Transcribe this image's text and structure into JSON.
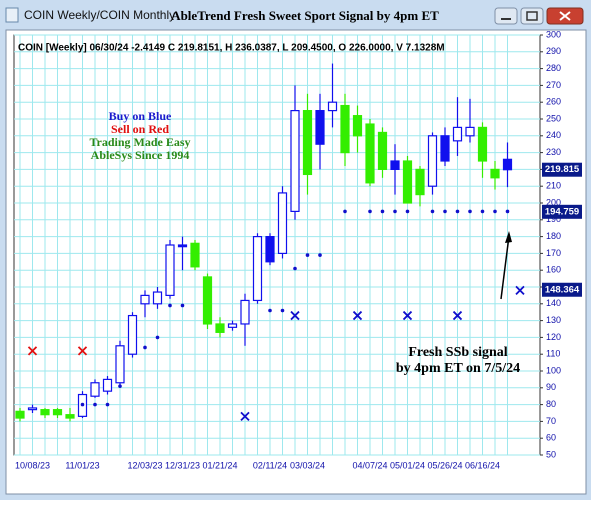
{
  "window_title": "COIN Weekly/COIN Monthly",
  "chart_data": {
    "type": "candlestick",
    "title": "AbleTrend Fresh Sweet Sport Signal by 4pm ET",
    "subtitle": "COIN [Weekly] 06/30/24 -2.4149 C 219.8151, H 236.0387, L 209.4500, O 226.0000, V 7.1328M",
    "annotations": [
      "Buy on Blue",
      "Sell on Red",
      "Trading Made Easy",
      "AbleSys Since 1994",
      "Fresh SSb signal",
      "by 4pm ET on 7/5/24"
    ],
    "annotation_colors": [
      "#1a1acc",
      "#e01010",
      "#2a8a1a",
      "#2a8a1a",
      "#000000",
      "#000000"
    ],
    "categories": [
      null,
      "10/08/23",
      null,
      null,
      null,
      "11/01/23",
      null,
      null,
      null,
      null,
      "12/03/23",
      null,
      null,
      "12/31/23",
      null,
      null,
      "01/21/24",
      null,
      null,
      null,
      "02/11/24",
      null,
      null,
      "03/03/24",
      null,
      null,
      null,
      null,
      "04/07/24",
      null,
      null,
      "05/01/24",
      null,
      null,
      "05/26/24",
      null,
      null,
      "06/16/24",
      null,
      null
    ],
    "candles": {
      "open": [
        72,
        77,
        74,
        74,
        72,
        73,
        85,
        88,
        93,
        110,
        140,
        140,
        145,
        175,
        176,
        156,
        128,
        126,
        128,
        142,
        180,
        170,
        195,
        255,
        255,
        255,
        258,
        252,
        247,
        242,
        225,
        225,
        220,
        210,
        240,
        237,
        240,
        245,
        220,
        226
      ],
      "high": [
        78,
        80,
        78,
        78,
        78,
        88,
        95,
        97,
        118,
        135,
        148,
        150,
        178,
        180,
        178,
        158,
        132,
        130,
        146,
        182,
        182,
        210,
        270,
        265,
        265,
        283,
        265,
        258,
        250,
        245,
        235,
        228,
        222,
        242,
        245,
        263,
        262,
        248,
        225,
        236.0387
      ],
      "low": [
        70,
        75,
        72,
        72,
        70,
        72,
        84,
        86,
        90,
        108,
        132,
        137,
        143,
        160,
        160,
        125,
        120,
        124,
        115,
        140,
        163,
        167,
        190,
        205,
        220,
        245,
        222,
        230,
        210,
        215,
        205,
        200,
        198,
        205,
        222,
        228,
        236,
        215,
        208,
        209.45
      ],
      "close": [
        76,
        78,
        77,
        77,
        74,
        86,
        93,
        95,
        115,
        133,
        145,
        147,
        175,
        174,
        162,
        128,
        123,
        128,
        142,
        180,
        165,
        206,
        255,
        217,
        235,
        260,
        230,
        240,
        212,
        220,
        220,
        200,
        205,
        240,
        225,
        245,
        245,
        225,
        215,
        219.8151
      ],
      "colors": [
        "#33ee00",
        "#1010ee",
        "#33ee00",
        "#33ee00",
        "#33ee00",
        "#1010ee",
        "#1010ee",
        "#1010ee",
        "#1010ee",
        "#1010ee",
        "#1010ee",
        "#1010ee",
        "#1010ee",
        "#1010ee",
        "#33ee00",
        "#33ee00",
        "#33ee00",
        "#1010ee",
        "#1010ee",
        "#1010ee",
        "#1010ee",
        "#1010ee",
        "#1010ee",
        "#33ee00",
        "#1010ee",
        "#1010ee",
        "#33ee00",
        "#33ee00",
        "#33ee00",
        "#33ee00",
        "#1010ee",
        "#33ee00",
        "#33ee00",
        "#1010ee",
        "#1010ee",
        "#1010ee",
        "#1010ee",
        "#33ee00",
        "#33ee00",
        "#1010ee"
      ]
    },
    "stops": {
      "x": [
        5,
        6,
        7,
        8,
        10,
        11,
        12,
        13,
        20,
        21,
        22,
        23,
        24,
        26,
        28,
        29,
        30,
        31,
        33,
        34,
        35,
        36,
        37,
        38,
        39
      ],
      "values": [
        80,
        80,
        80,
        91,
        114,
        120,
        139,
        139,
        136,
        136,
        161,
        169,
        169,
        195,
        195,
        195,
        195,
        195,
        195,
        195,
        195,
        195,
        195,
        195,
        195
      ],
      "color": "#1010cc"
    },
    "sell_signals": {
      "x": [
        1,
        5
      ],
      "values": [
        112,
        112
      ],
      "color": "#e01010"
    },
    "buy_signals": {
      "x": [
        18,
        22,
        27,
        31,
        35,
        40
      ],
      "values": [
        73,
        133,
        133,
        133,
        133,
        148
      ],
      "color": "#1010cc"
    },
    "price_markers": [
      219.815,
      194.759,
      148.364
    ],
    "ylim": [
      50,
      300
    ],
    "yticks": [
      50,
      60,
      70,
      80,
      90,
      100,
      110,
      120,
      130,
      140,
      150,
      160,
      170,
      180,
      190,
      200,
      210,
      220,
      230,
      240,
      250,
      260,
      270,
      280,
      290,
      300
    ],
    "grid": true
  }
}
